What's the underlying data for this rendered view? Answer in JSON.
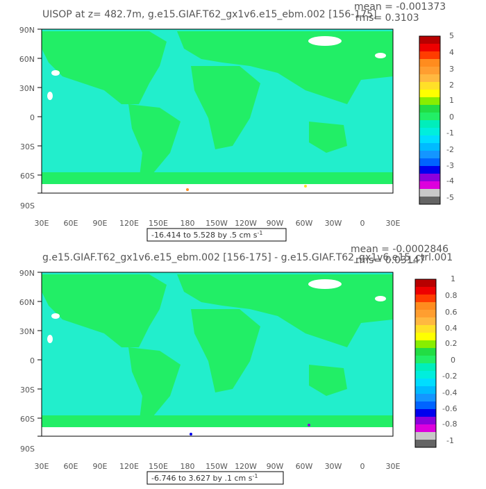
{
  "panels": [
    {
      "title": "UISOP at z= 482.7m, g.e15.GIAF.T62_gx1v6.e15_ebm.002 [156-175]",
      "mean": "mean = -0.001373",
      "rms": "rms= 0.3103",
      "range_label": "-16.414 to 5.528 by .5 cm s",
      "range_sup": "-1",
      "lat_ticks": [
        "90N",
        "60N",
        "30N",
        "0",
        "30S",
        "60S",
        "90S"
      ],
      "lon_ticks": [
        "30E",
        "60E",
        "90E",
        "120E",
        "150E",
        "180",
        "150W",
        "120W",
        "90W",
        "60W",
        "30W",
        "0",
        "30E"
      ],
      "colorbar_labels": [
        "5",
        "4",
        "3",
        "2",
        "1",
        "0",
        "-1",
        "-2",
        "-3",
        "-4",
        "-5"
      ]
    },
    {
      "title": "g.e15.GIAF.T62_gx1v6.e15_ebm.002 [156-175] - g.e15.GIAF.T62_gx1v6.e15_ctrl.001",
      "mean": "mean = -0.0002846",
      "rms": "rms= 0.03147",
      "range_label": "-6.746 to 3.627 by .1 cm s",
      "range_sup": "-1",
      "lat_ticks": [
        "90N",
        "60N",
        "30N",
        "0",
        "30S",
        "60S",
        "90S"
      ],
      "lon_ticks": [
        "30E",
        "60E",
        "90E",
        "120E",
        "150E",
        "180",
        "150W",
        "120W",
        "90W",
        "60W",
        "30W",
        "0",
        "30E"
      ],
      "colorbar_labels": [
        "1",
        "0.8",
        "0.6",
        "0.4",
        "0.2",
        "0",
        "-0.2",
        "-0.4",
        "-0.6",
        "-0.8",
        "-1"
      ]
    }
  ],
  "colors": {
    "land": "#22ee66",
    "ocean": "#22eecc",
    "ice": "#ffffff",
    "colorbar": [
      "#b80000",
      "#ee0000",
      "#ff3c00",
      "#ff8c1e",
      "#ff9e30",
      "#ffb840",
      "#ffe028",
      "#ffff00",
      "#88ee00",
      "#22dd44",
      "#22ee66",
      "#00eebb",
      "#00eedd",
      "#00ddff",
      "#00bbff",
      "#1496ff",
      "#0064ff",
      "#0000ee",
      "#8c00dd",
      "#dd00dd",
      "#c8c8c8",
      "#646464"
    ]
  }
}
